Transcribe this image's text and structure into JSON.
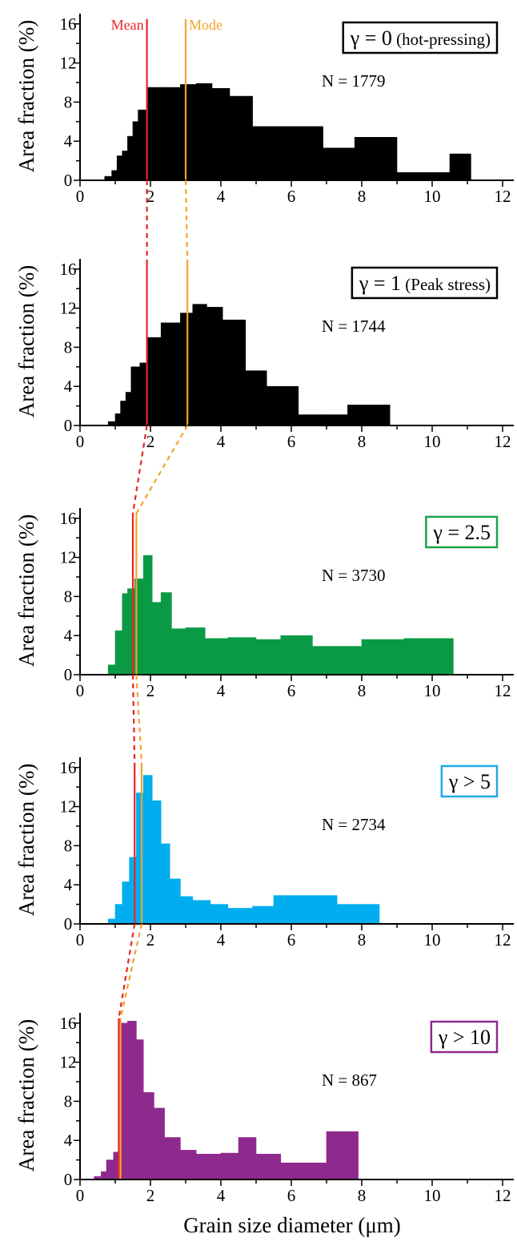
{
  "colors": {
    "mean": "#e8242a",
    "mode": "#f5a32a"
  },
  "chart_data": {
    "type": "bar",
    "xlabel": "Grain size diameter (μm)",
    "ylabel": "Area fraction (%)",
    "xlim": [
      0,
      12.5
    ],
    "ylim": [
      0,
      17
    ],
    "xticks": [
      0,
      2,
      4,
      6,
      8,
      10,
      12
    ],
    "yticks": [
      0,
      4,
      8,
      12,
      16
    ],
    "legend": {
      "mean": "Mean",
      "mode": "Mode"
    },
    "panels": [
      {
        "strain_label": "γ = 0",
        "strain_note": "(hot-pressing)",
        "box_color": "#000000",
        "fill": "#000000",
        "n_label": "N = 1779",
        "mean": 1.9,
        "mode": 3.0,
        "bins": [
          [
            0.7,
            0.9,
            0.4
          ],
          [
            0.9,
            1.05,
            1.0
          ],
          [
            1.05,
            1.2,
            2.5
          ],
          [
            1.2,
            1.35,
            3.0
          ],
          [
            1.35,
            1.5,
            4.5
          ],
          [
            1.5,
            1.65,
            6.0
          ],
          [
            1.65,
            1.9,
            7.2
          ],
          [
            1.9,
            2.4,
            9.5
          ],
          [
            2.4,
            2.85,
            9.5
          ],
          [
            2.85,
            3.3,
            9.8
          ],
          [
            3.3,
            3.75,
            9.9
          ],
          [
            3.75,
            4.25,
            9.4
          ],
          [
            4.25,
            4.9,
            8.6
          ],
          [
            4.9,
            5.9,
            5.5
          ],
          [
            5.9,
            6.9,
            5.5
          ],
          [
            6.9,
            7.8,
            3.3
          ],
          [
            7.8,
            9.0,
            4.4
          ],
          [
            9.0,
            9.5,
            0.8
          ],
          [
            9.5,
            10.5,
            0.8
          ],
          [
            10.5,
            11.1,
            2.7
          ]
        ]
      },
      {
        "strain_label": "γ = 1",
        "strain_note": "(Peak stress)",
        "box_color": "#000000",
        "fill": "#000000",
        "n_label": "N = 1744",
        "mean": 1.9,
        "mode": 3.05,
        "bins": [
          [
            0.8,
            1.0,
            0.4
          ],
          [
            1.0,
            1.15,
            1.2
          ],
          [
            1.15,
            1.3,
            2.5
          ],
          [
            1.3,
            1.45,
            3.4
          ],
          [
            1.45,
            1.7,
            6.0
          ],
          [
            1.7,
            1.9,
            6.4
          ],
          [
            1.9,
            2.3,
            9.0
          ],
          [
            2.3,
            2.85,
            10.5
          ],
          [
            2.85,
            3.2,
            11.5
          ],
          [
            3.2,
            3.6,
            12.4
          ],
          [
            3.6,
            4.05,
            12.1
          ],
          [
            4.05,
            4.7,
            10.8
          ],
          [
            4.7,
            5.3,
            5.6
          ],
          [
            5.3,
            6.2,
            4.0
          ],
          [
            6.2,
            6.9,
            1.1
          ],
          [
            6.9,
            7.6,
            1.1
          ],
          [
            7.6,
            8.8,
            2.1
          ]
        ]
      },
      {
        "strain_label": "γ = 2.5",
        "strain_note": "",
        "box_color": "#1aa34a",
        "fill": "#0a9a45",
        "n_label": "N = 3730",
        "mean": 1.5,
        "mode": 1.6,
        "bins": [
          [
            0.8,
            1.0,
            1.0
          ],
          [
            1.0,
            1.2,
            4.5
          ],
          [
            1.2,
            1.35,
            8.3
          ],
          [
            1.35,
            1.55,
            8.8
          ],
          [
            1.55,
            1.8,
            9.8
          ],
          [
            1.8,
            2.05,
            12.2
          ],
          [
            2.05,
            2.3,
            7.4
          ],
          [
            2.3,
            2.6,
            8.4
          ],
          [
            2.6,
            3.0,
            4.7
          ],
          [
            3.0,
            3.55,
            4.8
          ],
          [
            3.55,
            4.2,
            3.7
          ],
          [
            4.2,
            5.0,
            3.8
          ],
          [
            5.0,
            5.7,
            3.6
          ],
          [
            5.7,
            6.6,
            4.0
          ],
          [
            6.6,
            7.3,
            2.9
          ],
          [
            7.3,
            8.0,
            2.9
          ],
          [
            8.0,
            9.2,
            3.6
          ],
          [
            9.2,
            10.6,
            3.7
          ]
        ]
      },
      {
        "strain_label": "γ > 5",
        "strain_note": "",
        "box_color": "#1ea9e6",
        "fill": "#00aeef",
        "n_label": "N = 2734",
        "mean": 1.55,
        "mode": 1.75,
        "bins": [
          [
            0.8,
            1.0,
            0.5
          ],
          [
            1.0,
            1.2,
            2.0
          ],
          [
            1.2,
            1.4,
            4.3
          ],
          [
            1.4,
            1.6,
            6.8
          ],
          [
            1.6,
            1.8,
            13.4
          ],
          [
            1.8,
            2.05,
            15.2
          ],
          [
            2.05,
            2.3,
            12.6
          ],
          [
            2.3,
            2.55,
            8.2
          ],
          [
            2.55,
            2.85,
            4.6
          ],
          [
            2.85,
            3.2,
            2.8
          ],
          [
            3.2,
            3.7,
            2.4
          ],
          [
            3.7,
            4.2,
            2.0
          ],
          [
            4.2,
            4.9,
            1.6
          ],
          [
            4.9,
            5.5,
            1.8
          ],
          [
            5.5,
            6.4,
            2.9
          ],
          [
            6.4,
            7.3,
            2.9
          ],
          [
            7.3,
            8.5,
            2.0
          ]
        ]
      },
      {
        "strain_label": "γ > 10",
        "strain_note": "",
        "box_color": "#8f2a8f",
        "fill": "#8e2a8e",
        "n_label": "N = 867",
        "mean": 1.1,
        "mode": 1.15,
        "bins": [
          [
            0.4,
            0.6,
            0.3
          ],
          [
            0.6,
            0.75,
            0.8
          ],
          [
            0.75,
            0.95,
            2.0
          ],
          [
            0.95,
            1.1,
            2.8
          ],
          [
            1.1,
            1.35,
            16.0
          ],
          [
            1.35,
            1.6,
            16.2
          ],
          [
            1.6,
            1.8,
            14.3
          ],
          [
            1.8,
            2.1,
            8.9
          ],
          [
            2.1,
            2.4,
            7.3
          ],
          [
            2.4,
            2.85,
            4.3
          ],
          [
            2.85,
            3.3,
            3.0
          ],
          [
            3.3,
            4.0,
            2.6
          ],
          [
            4.0,
            4.5,
            2.7
          ],
          [
            4.5,
            5.0,
            4.3
          ],
          [
            5.0,
            5.7,
            2.6
          ],
          [
            5.7,
            6.4,
            1.7
          ],
          [
            6.4,
            7.0,
            1.7
          ],
          [
            7.0,
            7.9,
            4.9
          ]
        ]
      }
    ]
  }
}
